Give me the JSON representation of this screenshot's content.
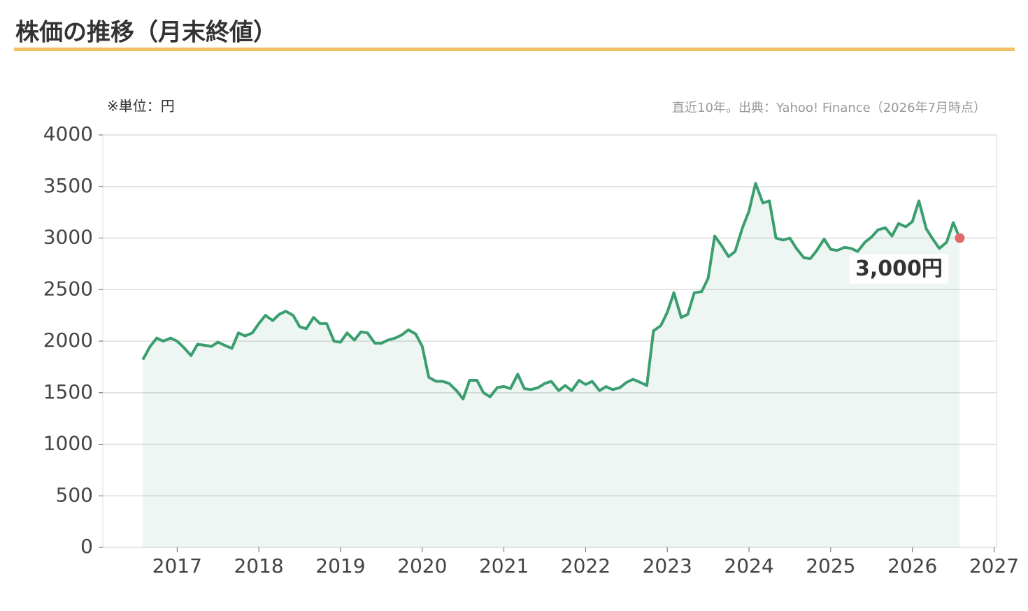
{
  "chart_data": {
    "type": "line",
    "title": "株価の推移（月末終値）",
    "unit_note": "※単位：円",
    "source_note": "直近10年。出典：Yahoo! Finance（2026年7月時点）",
    "annotation": "3,000円",
    "xlim": [
      2016.09,
      2027.03
    ],
    "xticks": [
      2017,
      2018,
      2019,
      2020,
      2021,
      2022,
      2023,
      2024,
      2025,
      2026,
      2027
    ],
    "ylim": [
      0,
      4000
    ],
    "yticks": [
      0,
      500,
      1000,
      1500,
      2000,
      2500,
      3000,
      3500,
      4000
    ],
    "grid": true,
    "x": [
      2016.58,
      2016.67,
      2016.75,
      2016.83,
      2016.92,
      2017.0,
      2017.08,
      2017.17,
      2017.25,
      2017.33,
      2017.42,
      2017.5,
      2017.58,
      2017.67,
      2017.75,
      2017.83,
      2017.92,
      2018.0,
      2018.08,
      2018.17,
      2018.25,
      2018.33,
      2018.42,
      2018.5,
      2018.58,
      2018.67,
      2018.75,
      2018.83,
      2018.92,
      2019.0,
      2019.08,
      2019.17,
      2019.25,
      2019.33,
      2019.42,
      2019.5,
      2019.58,
      2019.67,
      2019.75,
      2019.83,
      2019.92,
      2020.0,
      2020.08,
      2020.17,
      2020.25,
      2020.33,
      2020.42,
      2020.5,
      2020.58,
      2020.67,
      2020.75,
      2020.83,
      2020.92,
      2021.0,
      2021.08,
      2021.17,
      2021.25,
      2021.33,
      2021.42,
      2021.5,
      2021.58,
      2021.67,
      2021.75,
      2021.83,
      2021.92,
      2022.0,
      2022.08,
      2022.17,
      2022.25,
      2022.33,
      2022.42,
      2022.5,
      2022.58,
      2022.67,
      2022.75,
      2022.83,
      2022.92,
      2023.0,
      2023.08,
      2023.17,
      2023.25,
      2023.33,
      2023.42,
      2023.5,
      2023.58,
      2023.67,
      2023.75,
      2023.83,
      2023.92,
      2024.0,
      2024.08,
      2024.17,
      2024.25,
      2024.33,
      2024.42,
      2024.5,
      2024.58,
      2024.67,
      2024.75,
      2024.83,
      2024.92,
      2025.0,
      2025.08,
      2025.17,
      2025.25,
      2025.33,
      2025.42,
      2025.5,
      2025.58,
      2025.67,
      2025.75,
      2025.83,
      2025.92,
      2026.0,
      2026.08,
      2026.17,
      2026.25,
      2026.33,
      2026.42,
      2026.5,
      2026.58
    ],
    "series": [
      {
        "color": "#3a9e6e",
        "values": [
          1820,
          1950,
          2030,
          2000,
          2030,
          2000,
          1940,
          1860,
          1970,
          1960,
          1950,
          1990,
          1960,
          1930,
          2080,
          2050,
          2080,
          2170,
          2250,
          2200,
          2260,
          2290,
          2250,
          2140,
          2120,
          2230,
          2170,
          2170,
          2000,
          1990,
          2080,
          2010,
          2090,
          2080,
          1980,
          1980,
          2010,
          2030,
          2060,
          2110,
          2070,
          1950,
          1650,
          1610,
          1610,
          1590,
          1520,
          1440,
          1620,
          1620,
          1500,
          1460,
          1550,
          1560,
          1540,
          1680,
          1540,
          1530,
          1550,
          1590,
          1610,
          1520,
          1570,
          1520,
          1620,
          1580,
          1610,
          1520,
          1560,
          1530,
          1550,
          1600,
          1630,
          1600,
          1570,
          2100,
          2150,
          2280,
          2470,
          2230,
          2260,
          2470,
          2480,
          2610,
          3020,
          2920,
          2820,
          2870,
          3100,
          3260,
          3530,
          3340,
          3360,
          3000,
          2980,
          3000,
          2900,
          2810,
          2800,
          2880,
          2990,
          2890,
          2880,
          2910,
          2900,
          2870,
          2960,
          3010,
          3080,
          3100,
          3020,
          3140,
          3110,
          3160,
          3360,
          3090,
          2990,
          2900,
          2960,
          3150,
          3000
        ]
      }
    ]
  }
}
